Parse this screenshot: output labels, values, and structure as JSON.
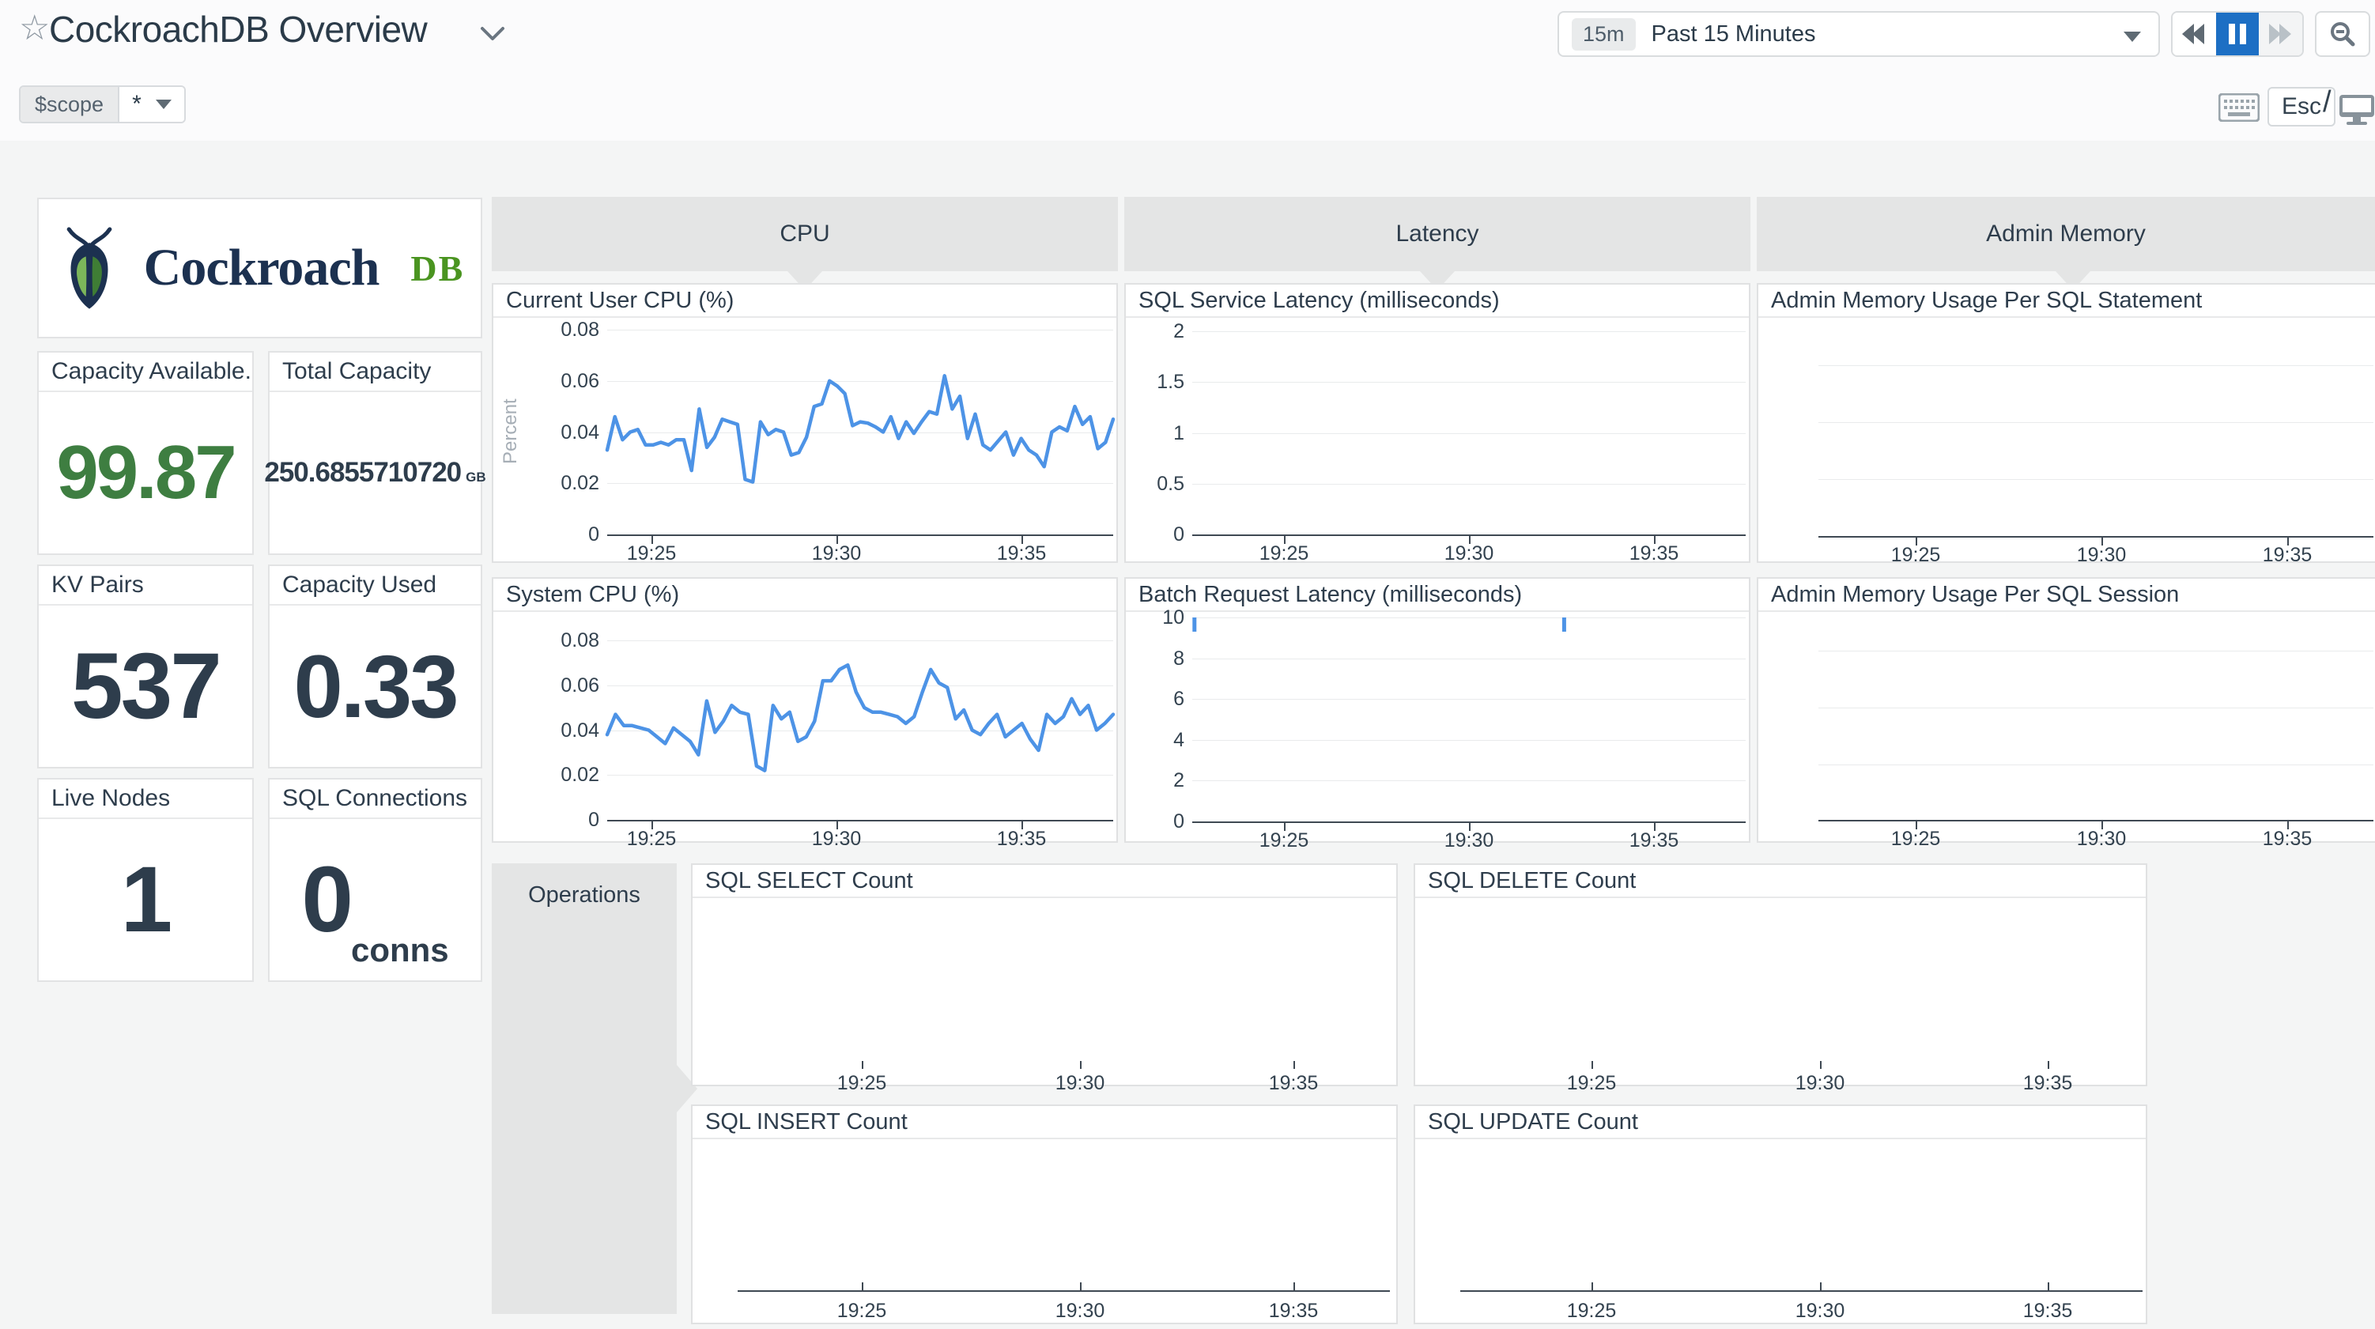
{
  "header": {
    "title": "CockroachDB Overview",
    "time_range_badge": "15m",
    "time_range_label": "Past 15 Minutes",
    "esc_key_label": "Esc",
    "slash_label": "/",
    "scope_var_name": "$scope",
    "scope_var_value": "*"
  },
  "logo": {
    "brand": "Cockroach",
    "brand_suffix": "DB"
  },
  "metrics": [
    {
      "label": "Capacity Available...",
      "value": "99.87",
      "unit": ""
    },
    {
      "label": "Total Capacity",
      "value": "250.6855710720",
      "unit": "GB"
    },
    {
      "label": "KV Pairs",
      "value": "537",
      "unit": ""
    },
    {
      "label": "Capacity Used",
      "value": "0.33",
      "unit": ""
    },
    {
      "label": "Live Nodes",
      "value": "1",
      "unit": ""
    },
    {
      "label": "SQL Connections",
      "value": "0",
      "unit": "conns"
    }
  ],
  "groups": {
    "cpu": "CPU",
    "latency": "Latency",
    "admin_memory": "Admin Memory",
    "operations": "Operations"
  },
  "colors": {
    "accent_blue": "#1d6fc4",
    "line_blue": "#4d93e6",
    "green_value": "#3e7e41",
    "logo_navy": "#1c3150",
    "logo_green": "#4a9420",
    "banner_gray": "#e4e5e5",
    "canvas_gray": "#f4f5f5"
  },
  "chart_data": {
    "cpu_user": {
      "type": "line",
      "title": "Current User CPU (%)",
      "ylabel": "Percent",
      "ylim": [
        0,
        0.08
      ],
      "y_ticks": [
        "0.08",
        "0.06",
        "0.04",
        "0.02",
        "0"
      ],
      "x_ticks": [
        "19:25",
        "19:30",
        "19:35"
      ],
      "grid": true,
      "values": [
        0.033,
        0.046,
        0.037,
        0.04,
        0.041,
        0.035,
        0.035,
        0.036,
        0.035,
        0.037,
        0.037,
        0.025,
        0.049,
        0.034,
        0.038,
        0.045,
        0.044,
        0.043,
        0.0215,
        0.0205,
        0.044,
        0.039,
        0.041,
        0.04,
        0.031,
        0.032,
        0.038,
        0.05,
        0.051,
        0.06,
        0.058,
        0.055,
        0.0425,
        0.044,
        0.0435,
        0.042,
        0.04,
        0.046,
        0.0375,
        0.044,
        0.0395,
        0.044,
        0.048,
        0.047,
        0.062,
        0.049,
        0.054,
        0.0375,
        0.047,
        0.035,
        0.033,
        0.0365,
        0.04,
        0.031,
        0.0375,
        0.033,
        0.031,
        0.0265,
        0.04,
        0.042,
        0.0405,
        0.05,
        0.043,
        0.046,
        0.0335,
        0.036,
        0.045
      ]
    },
    "cpu_system": {
      "type": "line",
      "title": "System CPU (%)",
      "ylim": [
        0,
        0.08
      ],
      "y_ticks": [
        "0.08",
        "0.06",
        "0.04",
        "0.02",
        "0"
      ],
      "x_ticks": [
        "19:25",
        "19:30",
        "19:35"
      ],
      "grid": true,
      "values": [
        0.038,
        0.047,
        0.042,
        0.042,
        0.041,
        0.04,
        0.037,
        0.034,
        0.041,
        0.038,
        0.035,
        0.029,
        0.053,
        0.039,
        0.044,
        0.051,
        0.048,
        0.047,
        0.024,
        0.022,
        0.051,
        0.045,
        0.048,
        0.035,
        0.037,
        0.044,
        0.062,
        0.062,
        0.067,
        0.069,
        0.057,
        0.05,
        0.048,
        0.048,
        0.047,
        0.046,
        0.043,
        0.046,
        0.057,
        0.067,
        0.061,
        0.059,
        0.045,
        0.049,
        0.04,
        0.038,
        0.043,
        0.047,
        0.037,
        0.04,
        0.043,
        0.036,
        0.031,
        0.047,
        0.043,
        0.046,
        0.054,
        0.047,
        0.051,
        0.04,
        0.043,
        0.047
      ]
    },
    "sql_service_latency": {
      "type": "line",
      "title": "SQL Service Latency (milliseconds)",
      "ylim": [
        0,
        2
      ],
      "y_ticks": [
        "2",
        "1.5",
        "1",
        "0.5",
        "0"
      ],
      "x_ticks": [
        "19:25",
        "19:30",
        "19:35"
      ],
      "grid": true,
      "values": []
    },
    "batch_request_latency": {
      "type": "line",
      "title": "Batch Request Latency (milliseconds)",
      "ylim": [
        0,
        10
      ],
      "y_ticks": [
        "10",
        "8",
        "6",
        "4",
        "2",
        "0"
      ],
      "x_ticks": [
        "19:25",
        "19:30",
        "19:35"
      ],
      "grid": true,
      "values": [],
      "spikes": [
        {
          "x_frac": 0.004,
          "value": 10
        },
        {
          "x_frac": 0.672,
          "value": 10
        }
      ]
    },
    "admin_mem_statement": {
      "type": "line",
      "title": "Admin Memory Usage Per SQL Statement",
      "y_ticks": [],
      "x_ticks": [
        "19:25",
        "19:30",
        "19:35"
      ],
      "grid": true,
      "values": []
    },
    "admin_mem_session": {
      "type": "line",
      "title": "Admin Memory Usage Per SQL Session",
      "y_ticks": [],
      "x_ticks": [
        "19:25",
        "19:30",
        "19:35"
      ],
      "grid": true,
      "values": []
    },
    "sql_select_count": {
      "type": "line",
      "title": "SQL SELECT Count",
      "y_ticks": [],
      "x_ticks": [
        "19:25",
        "19:30",
        "19:35"
      ],
      "grid": false,
      "values": []
    },
    "sql_delete_count": {
      "type": "line",
      "title": "SQL DELETE Count",
      "y_ticks": [],
      "x_ticks": [
        "19:25",
        "19:30",
        "19:35"
      ],
      "grid": false,
      "values": []
    },
    "sql_insert_count": {
      "type": "line",
      "title": "SQL INSERT Count",
      "y_ticks": [],
      "x_ticks": [
        "19:25",
        "19:30",
        "19:35"
      ],
      "grid": false,
      "values": []
    },
    "sql_update_count": {
      "type": "line",
      "title": "SQL UPDATE Count",
      "y_ticks": [],
      "x_ticks": [
        "19:25",
        "19:30",
        "19:35"
      ],
      "grid": false,
      "values": []
    }
  }
}
